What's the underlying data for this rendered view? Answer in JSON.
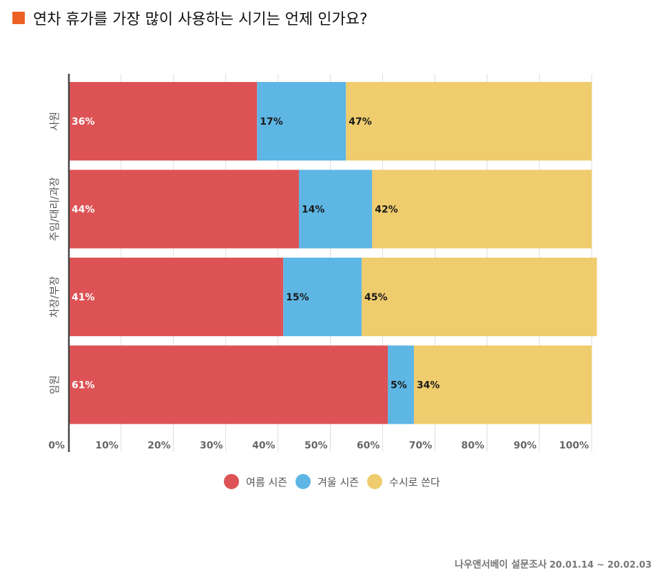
{
  "title": "연차 휴가를 가장 많이 사용하는 시기는 언제 인가요?",
  "colors": {
    "title_marker": "#ec6224",
    "summer": "#dd5355",
    "winter": "#5eb6e4",
    "anytime": "#efcc6d",
    "grid": "#dcdcdc",
    "axis": "#444444"
  },
  "footer": {
    "source": "나우앤서베이 설문조사",
    "period": "20.01.14 ~ 20.02.03"
  },
  "chart_data": {
    "type": "bar",
    "orientation": "horizontal",
    "stacked": true,
    "categories": [
      "사원",
      "주임/대리/과장",
      "차장/부장",
      "임원"
    ],
    "series": [
      {
        "name": "여름 시즌",
        "values": [
          36,
          44,
          41,
          61
        ],
        "labels": [
          "36%",
          "44%",
          "41%",
          "61%"
        ],
        "color": "#dd5355"
      },
      {
        "name": "겨울 시즌",
        "values": [
          17,
          14,
          15,
          5
        ],
        "labels": [
          "17%",
          "14%",
          "15%",
          "5%"
        ],
        "color": "#5eb6e4"
      },
      {
        "name": "수시로 쓴다",
        "values": [
          47,
          42,
          45,
          34
        ],
        "labels": [
          "47%",
          "42%",
          "45%",
          "34%"
        ],
        "color": "#efcc6d"
      }
    ],
    "xlim": [
      0,
      100
    ],
    "xticks": [
      "0%",
      "10%",
      "20%",
      "30%",
      "40%",
      "50%",
      "60%",
      "70%",
      "80%",
      "90%",
      "100%"
    ],
    "grid": true,
    "legend": "bottom-center"
  }
}
